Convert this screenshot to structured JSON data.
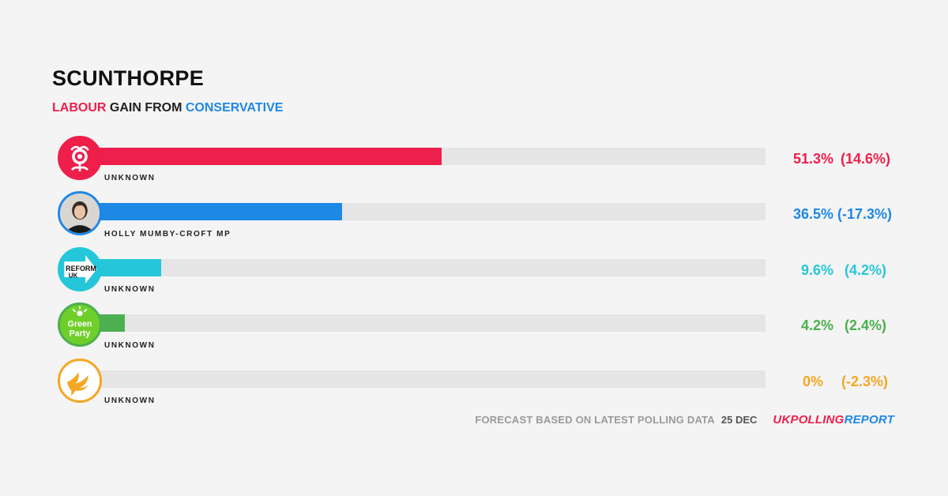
{
  "header": {
    "title": "SCUNTHORPE",
    "subtitle_winner": "LABOUR",
    "subtitle_mid": " GAIN FROM ",
    "subtitle_loser": "CONSERVATIVE"
  },
  "colors": {
    "labour": "#ee1f4b",
    "conservative": "#1e88e5",
    "reform": "#26c6da",
    "green": "#4caf50",
    "libdem": "#f5a623"
  },
  "chart_data": {
    "type": "bar",
    "title": "SCUNTHORPE",
    "xlim": [
      0,
      100
    ],
    "series": [
      {
        "party": "Labour",
        "candidate": "UNKNOWN",
        "share": 51.3,
        "share_label": "51.3%",
        "change_label": "(14.6%)",
        "color": "#ee1f4b",
        "icon": "labour-rose-icon"
      },
      {
        "party": "Conservative",
        "candidate": "HOLLY MUMBY-CROFT MP",
        "share": 36.5,
        "share_label": "36.5%",
        "change_label": "(-17.3%)",
        "color": "#1e88e5",
        "icon": "candidate-photo"
      },
      {
        "party": "Reform UK",
        "candidate": "UNKNOWN",
        "share": 9.6,
        "share_label": "9.6%",
        "change_label": "(4.2%)",
        "color": "#26c6da",
        "icon": "reform-uk-logo-icon"
      },
      {
        "party": "Green Party",
        "candidate": "UNKNOWN",
        "share": 4.2,
        "share_label": "4.2%",
        "change_label": "(2.4%)",
        "color": "#4caf50",
        "icon": "green-party-logo-icon"
      },
      {
        "party": "Liberal Democrats",
        "candidate": "UNKNOWN",
        "share": 0,
        "share_label": "0%",
        "change_label": "(-2.3%)",
        "color": "#f5a623",
        "icon": "libdem-bird-icon"
      }
    ]
  },
  "footer": {
    "note": "FORECAST BASED ON LATEST POLLING DATA",
    "date": "25 DEC",
    "brand_part1": "UK",
    "brand_part2": "POLLING",
    "brand_part3": "REPORT"
  },
  "logo_text": {
    "reform": "REFORM",
    "reform_uk": "UK",
    "green": "Green",
    "green_party": "Party"
  }
}
